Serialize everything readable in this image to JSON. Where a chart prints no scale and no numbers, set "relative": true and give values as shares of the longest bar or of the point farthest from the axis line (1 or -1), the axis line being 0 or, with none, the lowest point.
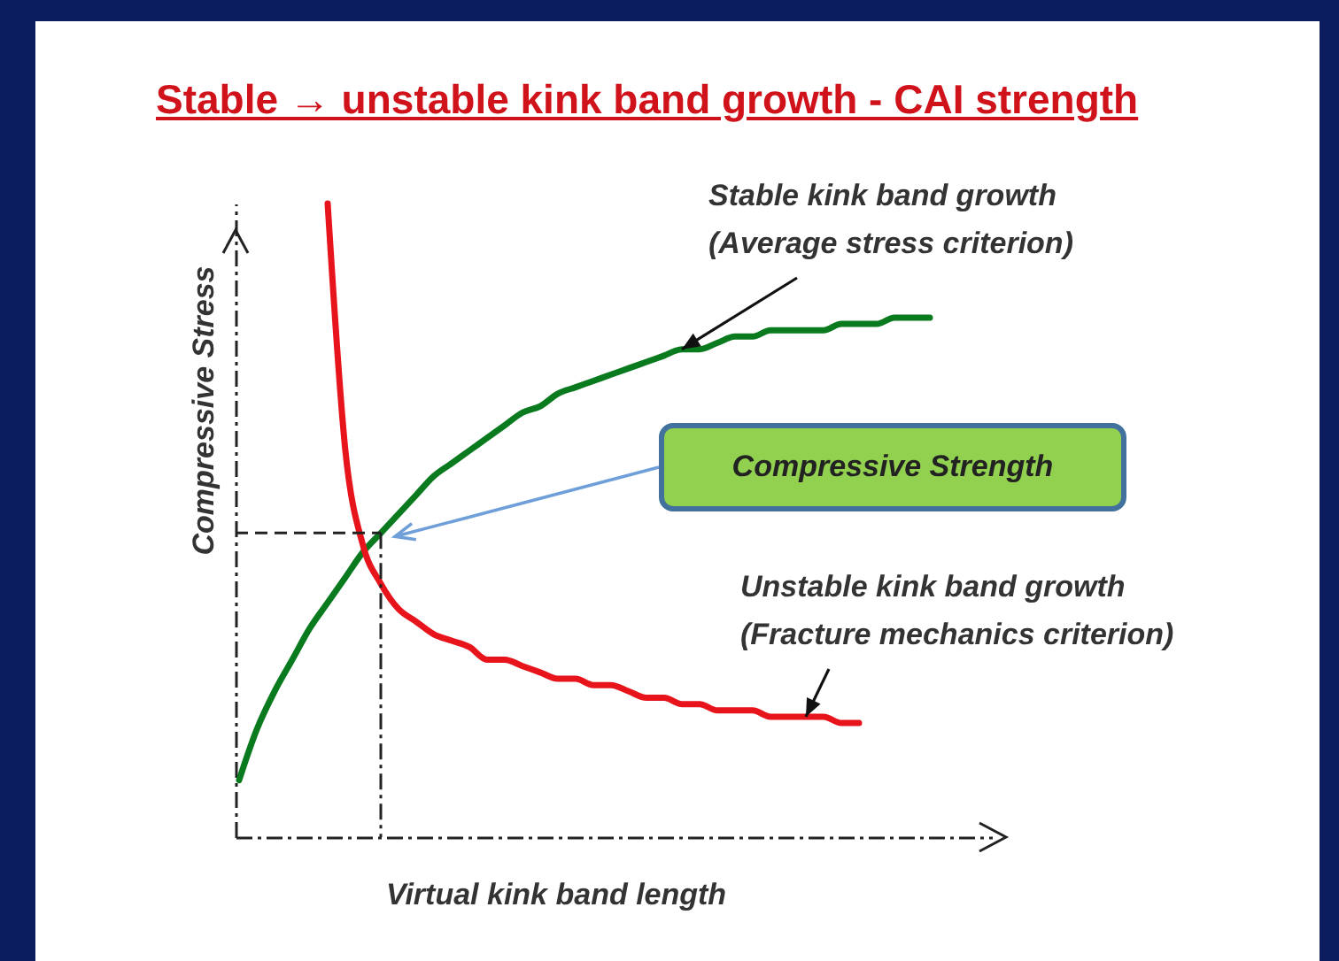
{
  "chart_data": {
    "type": "line",
    "relative": true,
    "title": "Stable → unstable kink band growth - CAI strength",
    "xlabel": "Virtual kink band length",
    "ylabel": "Compressive Stress",
    "categories": [
      null,
      null,
      null,
      null,
      null,
      null,
      null,
      null,
      null,
      null,
      null,
      null,
      null,
      null,
      null,
      null,
      null,
      null,
      null,
      null,
      null,
      null,
      null,
      null,
      null,
      null,
      null,
      null,
      null,
      null,
      null,
      null,
      null,
      null,
      null,
      null,
      null,
      null,
      null,
      null,
      null
    ],
    "series": [
      {
        "name": "Stable kink band growth (Average stress criterion)",
        "color": "#0a7a1e",
        "values": [
          0.09,
          0.17,
          0.23,
          0.28,
          0.33,
          0.37,
          0.41,
          0.45,
          0.48,
          0.51,
          0.54,
          0.57,
          0.59,
          0.61,
          0.63,
          0.65,
          0.67,
          0.68,
          0.7,
          0.71,
          0.72,
          0.73,
          0.74,
          0.75,
          0.76,
          0.77,
          0.77,
          0.78,
          0.79,
          0.79,
          0.8,
          0.8,
          0.8,
          0.8,
          0.81,
          0.81,
          0.81,
          0.82,
          0.82,
          0.82,
          null
        ]
      },
      {
        "name": "Unstable kink band growth (Fracture mechanics criterion)",
        "color": "#e8141c",
        "values": [
          null,
          null,
          null,
          null,
          null,
          1,
          0.61,
          0.46,
          0.4,
          0.36,
          0.34,
          0.32,
          0.31,
          0.3,
          0.28,
          0.28,
          0.27,
          0.26,
          0.25,
          0.25,
          0.24,
          0.24,
          0.23,
          0.22,
          0.22,
          0.21,
          0.21,
          0.2,
          0.2,
          0.2,
          0.19,
          0.19,
          0.19,
          0.19,
          0.18,
          0.18,
          null,
          null,
          null,
          null,
          null
        ]
      }
    ],
    "annotations": [
      "Compressive Strength"
    ],
    "grid": false,
    "legend": false
  }
}
